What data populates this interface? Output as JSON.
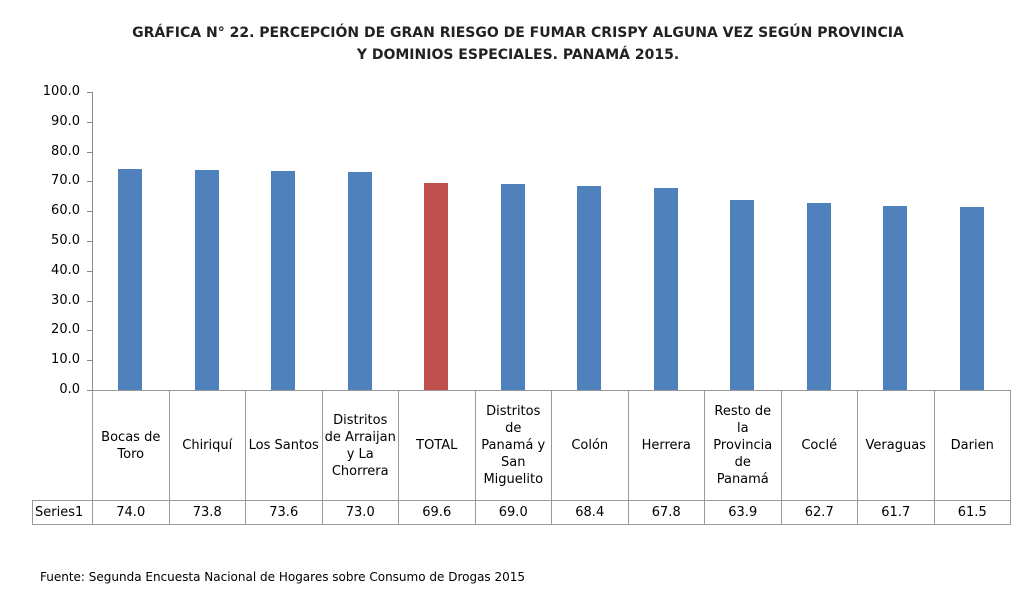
{
  "chart_data": {
    "type": "bar",
    "title": "GRÁFICA N° 22.  PERCEPCIÓN DE GRAN RIESGO DE FUMAR CRISPY ALGUNA VEZ  SEGÚN PROVINCIA Y DOMINIOS ESPECIALES.  PANAMÁ 2015.",
    "categories": [
      "Bocas de Toro",
      "Chiriquí",
      "Los Santos",
      "Distritos de Arraijan y La Chorrera",
      "TOTAL",
      "Distritos de Panamá y San Miguelito",
      "Colón",
      "Herrera",
      "Resto de la Provincia de Panamá",
      "Coclé",
      "Veraguas",
      "Darien"
    ],
    "series": [
      {
        "name": "Series1",
        "values": [
          74.0,
          73.8,
          73.6,
          73.0,
          69.6,
          69.0,
          68.4,
          67.8,
          63.9,
          62.7,
          61.7,
          61.5
        ],
        "value_labels": [
          "74.0",
          "73.8",
          "73.6",
          "73.0",
          "69.6",
          "69.0",
          "68.4",
          "67.8",
          "63.9",
          "62.7",
          "61.7",
          "61.5"
        ],
        "colors": [
          "#4f81bd",
          "#4f81bd",
          "#4f81bd",
          "#4f81bd",
          "#c0504d",
          "#4f81bd",
          "#4f81bd",
          "#4f81bd",
          "#4f81bd",
          "#4f81bd",
          "#4f81bd",
          "#4f81bd"
        ]
      }
    ],
    "ylim": [
      0,
      100
    ],
    "yticks": [
      {
        "value": 0,
        "label": "0.0"
      },
      {
        "value": 10,
        "label": "10.0"
      },
      {
        "value": 20,
        "label": "20.0"
      },
      {
        "value": 30,
        "label": "30.0"
      },
      {
        "value": 40,
        "label": "40.0"
      },
      {
        "value": 50,
        "label": "50.0"
      },
      {
        "value": 60,
        "label": "60.0"
      },
      {
        "value": 70,
        "label": "70.0"
      },
      {
        "value": 80,
        "label": "80.0"
      },
      {
        "value": 90,
        "label": "90.0"
      },
      {
        "value": 100,
        "label": "100.0"
      }
    ],
    "source": "Fuente: Segunda Encuesta Nacional de Hogares sobre Consumo de Drogas 2015"
  }
}
